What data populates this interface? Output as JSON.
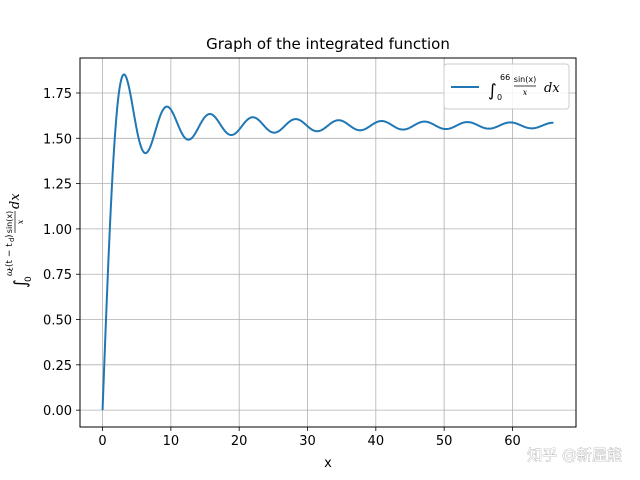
{
  "chart_data": {
    "type": "line",
    "title": "Graph of the integrated function",
    "xlabel": "x",
    "ylabel_parts": {
      "integral": "∫",
      "lower": "0",
      "upper": "ω",
      "upper_rest": "(t − t",
      "upper_tail": ")",
      "numerator": "sin(x)",
      "denominator": "x",
      "dx": "dx"
    },
    "xlim": [
      -3.3,
      69.3
    ],
    "ylim": [
      -0.093,
      1.943
    ],
    "x_ticks": [
      0,
      10,
      20,
      30,
      40,
      50,
      60
    ],
    "x_tick_labels": [
      "0",
      "10",
      "20",
      "30",
      "40",
      "50",
      "60"
    ],
    "y_ticks": [
      0.0,
      0.25,
      0.5,
      0.75,
      1.0,
      1.25,
      1.5,
      1.75
    ],
    "y_tick_labels": [
      "0.00",
      "0.25",
      "0.50",
      "0.75",
      "1.00",
      "1.25",
      "1.50",
      "1.75"
    ],
    "grid": true,
    "legend_position": "top-right",
    "series": [
      {
        "name": "∫₀⁶⁶ sin(x)/x dx",
        "legend_parts": {
          "integral": "∫",
          "lower": "0",
          "upper": "66",
          "numerator": "sin(x)",
          "denominator": "x",
          "dx": "dx"
        },
        "function": "Si(x)",
        "x_start": 0,
        "x_end": 66,
        "color": "#1f77b4"
      }
    ]
  },
  "watermark": "知乎 @新屋熊"
}
